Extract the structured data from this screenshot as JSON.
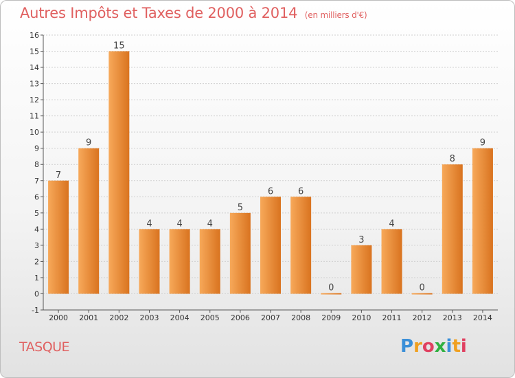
{
  "header": {
    "title": "Autres Impôts et Taxes de 2000 à 2014",
    "subtitle": "(en milliers d'€)"
  },
  "footer": {
    "commune": "TASQUE",
    "logo_letters": [
      "P",
      "r",
      "o",
      "x",
      "i",
      "t",
      "i"
    ],
    "logo_colors": [
      "#3a8fd8",
      "#f0a020",
      "#e04060",
      "#30b040",
      "#3a8fd8",
      "#f0a020",
      "#e04060"
    ]
  },
  "colors": {
    "bar_light": "#f7a95a",
    "bar_dark": "#d9731f",
    "grid": "#d0d0d0",
    "axis": "#555555"
  },
  "chart_data": {
    "type": "bar",
    "title": "Autres Impôts et Taxes de 2000 à 2014",
    "subtitle": "(en milliers d'€)",
    "categories": [
      "2000",
      "2001",
      "2002",
      "2003",
      "2004",
      "2005",
      "2006",
      "2007",
      "2008",
      "2009",
      "2010",
      "2011",
      "2012",
      "2013",
      "2014"
    ],
    "values": [
      7,
      9,
      15,
      4,
      4,
      4,
      5,
      6,
      6,
      0,
      3,
      4,
      0,
      8,
      9
    ],
    "data_labels": [
      "7",
      "9",
      "15",
      "4",
      "4",
      "4",
      "5",
      "6",
      "6",
      "0",
      "3",
      "4",
      "0",
      "8",
      "9"
    ],
    "ylim": [
      -1,
      16
    ],
    "yticks": [
      -1,
      0,
      1,
      2,
      3,
      4,
      5,
      6,
      7,
      8,
      9,
      10,
      11,
      12,
      13,
      14,
      15,
      16
    ],
    "grid": true,
    "xlabel": "",
    "ylabel": ""
  }
}
